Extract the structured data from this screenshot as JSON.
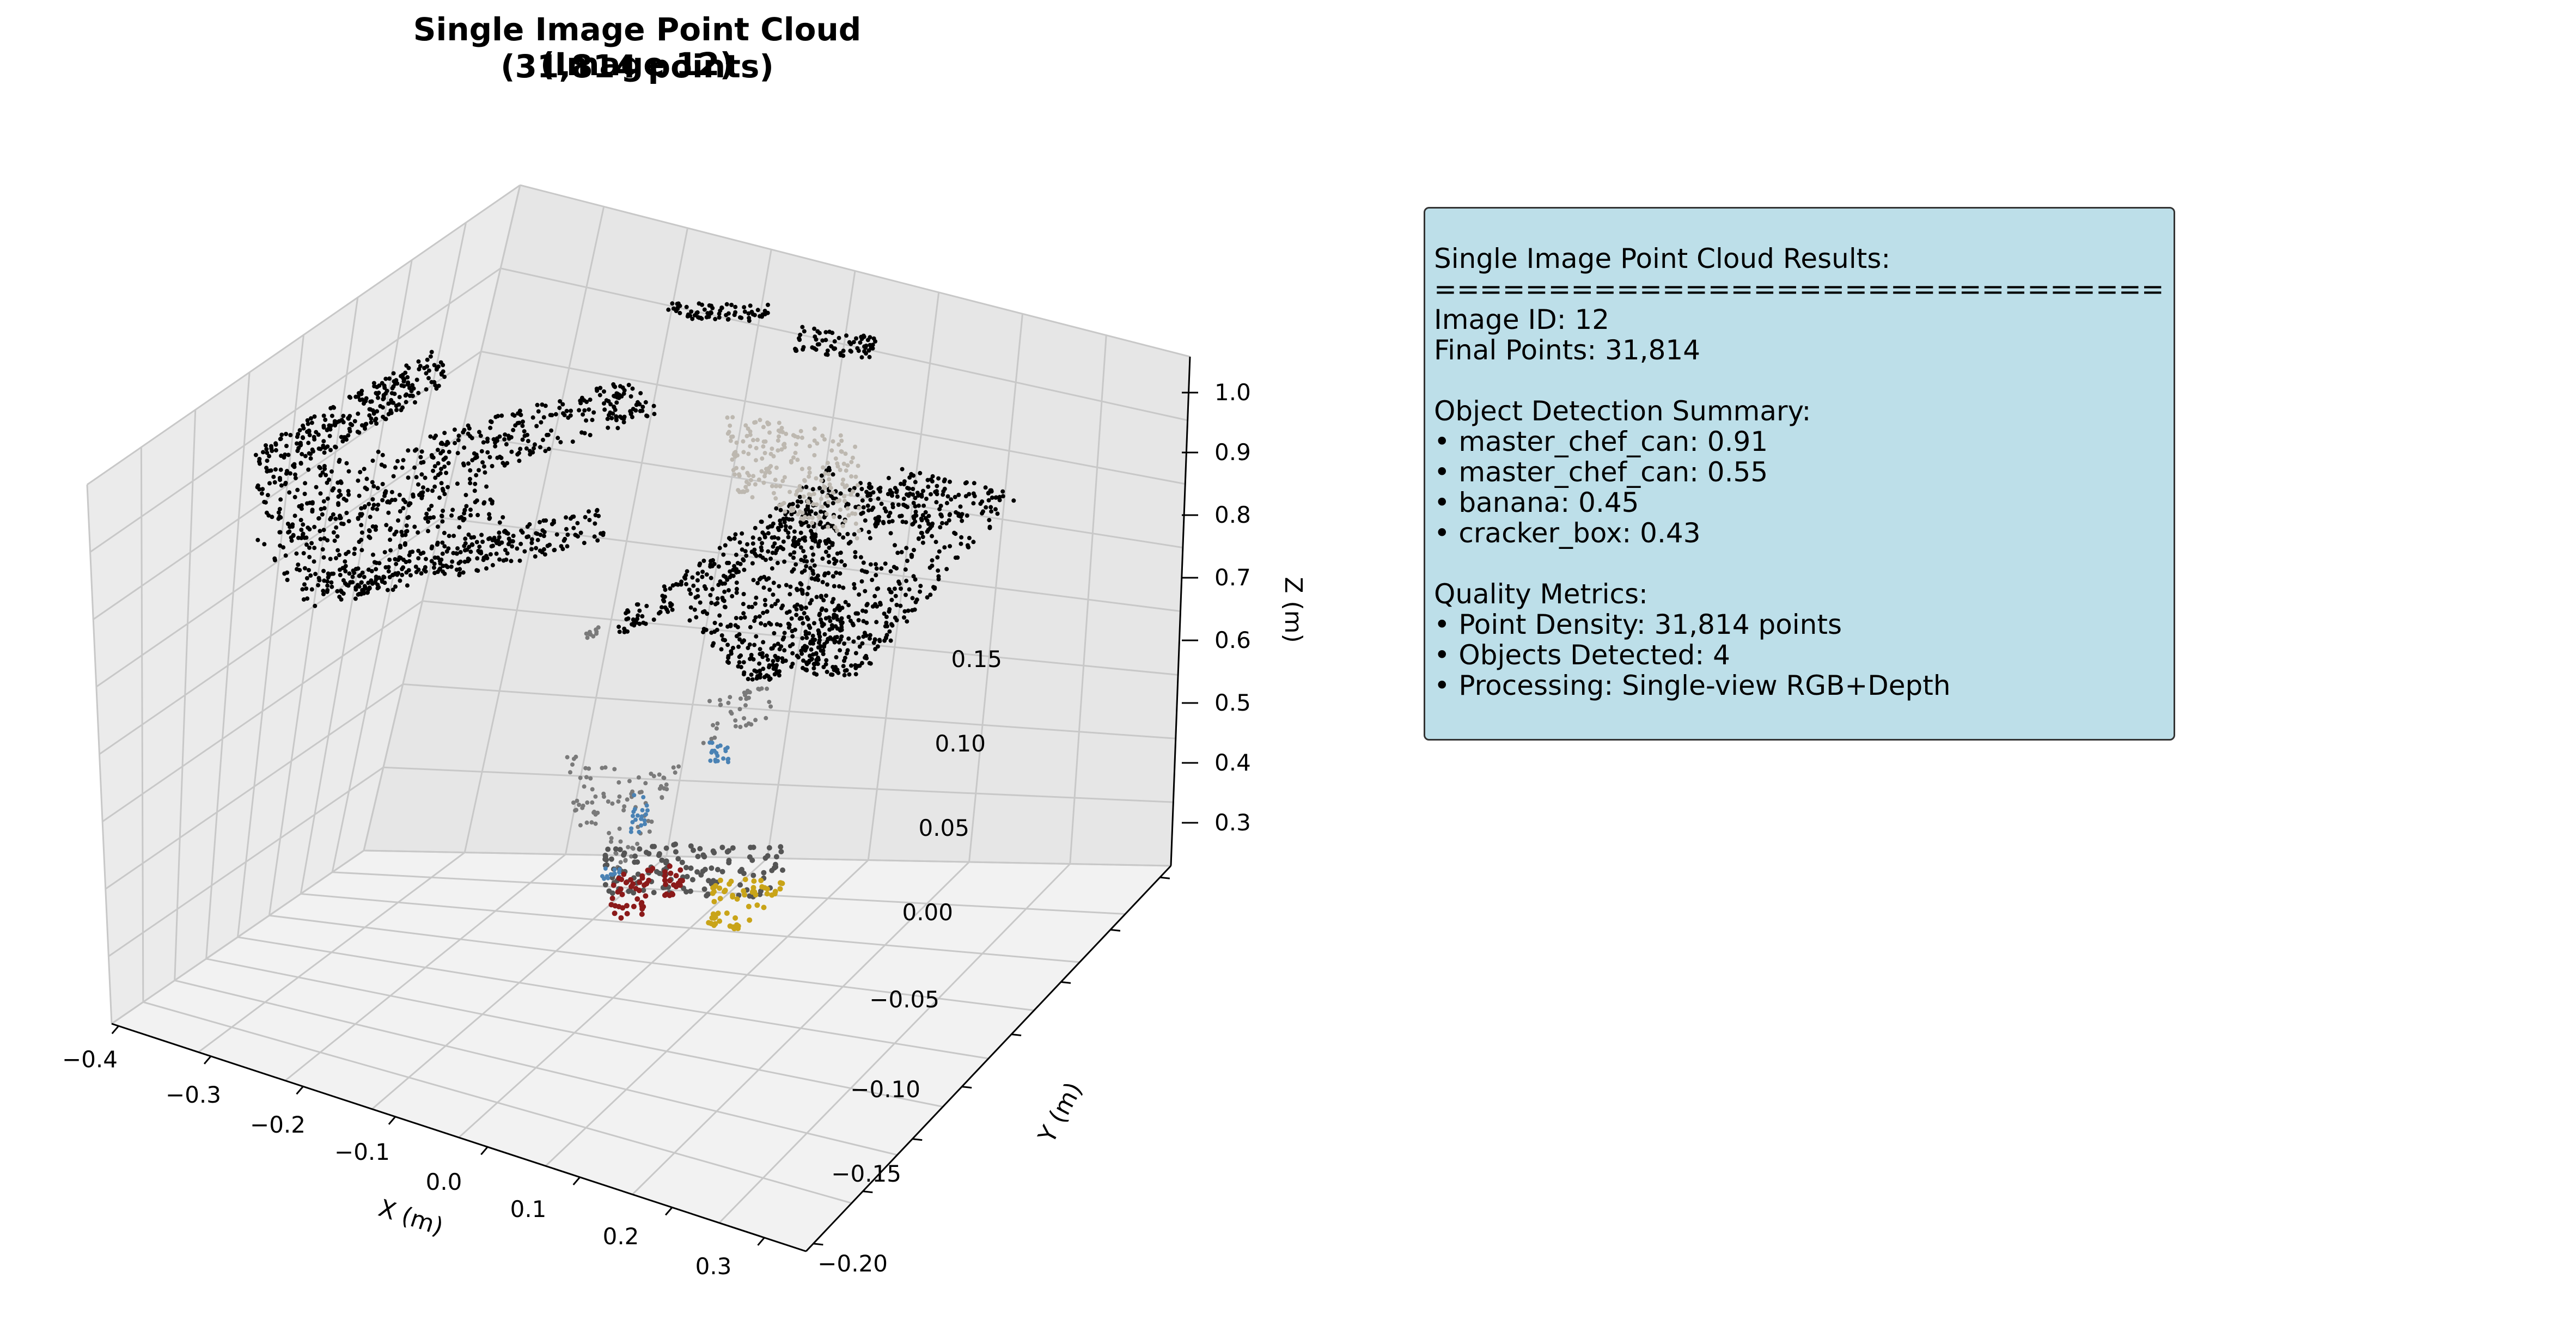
{
  "chart_data": {
    "type": "scatter",
    "projection": "3d",
    "title": "Single Image Point Cloud (Image 12)",
    "subtitle": "(31,814 points)",
    "xlabel": "X (m)",
    "ylabel": "Y (m)",
    "zlabel": "Z (m)",
    "xticks": [
      "−0.4",
      "−0.3",
      "−0.2",
      "−0.1",
      "0.0",
      "0.1",
      "0.2",
      "0.3"
    ],
    "yticks": [
      "−0.20",
      "−0.15",
      "−0.10",
      "−0.05",
      "0.00",
      "0.05",
      "0.10",
      "0.15"
    ],
    "zticks": [
      "0.3",
      "0.4",
      "0.5",
      "0.6",
      "0.7",
      "0.8",
      "0.9",
      "1.0"
    ],
    "grid": true,
    "pane_color": "#f2f2f2",
    "point_colors": {
      "table": "#000000",
      "background": "#bdb8b0",
      "gray": "#7a7a7a",
      "blue": "#4a82b4",
      "red": "#8b1a1a",
      "yellow": "#c9a418"
    }
  },
  "info": {
    "lines": [
      "Single Image Point Cloud Results:",
      "================================",
      "Image ID: 12",
      "Final Points: 31,814",
      "",
      "Object Detection Summary:",
      "• master_chef_can: 0.91",
      "• master_chef_can: 0.55",
      "• banana: 0.45",
      "• cracker_box: 0.43",
      "",
      "Quality Metrics:",
      "• Point Density: 31,814 points",
      "• Objects Detected: 4",
      "• Processing: Single-view RGB+Depth"
    ]
  }
}
